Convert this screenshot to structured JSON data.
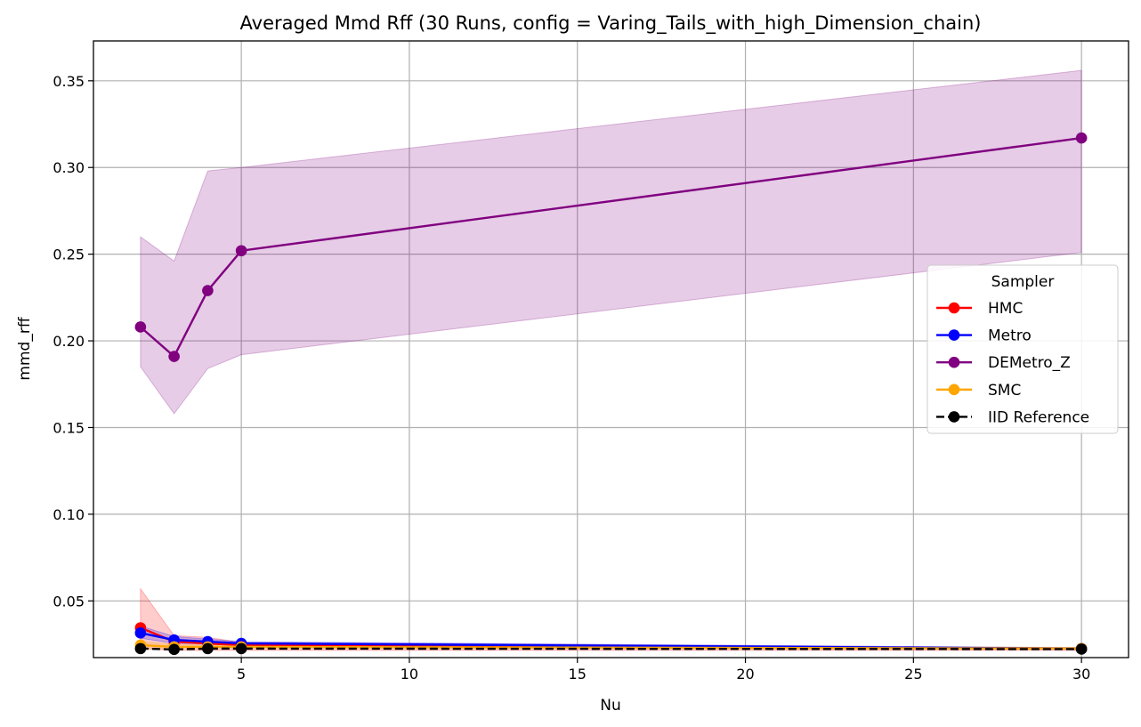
{
  "chart_data": {
    "type": "line",
    "title": "Averaged Mmd Rff (30 Runs, config = Varing_Tails_with_high_Dimension_chain)",
    "xlabel": "Nu",
    "ylabel": "mmd_rff",
    "xlim": [
      0.6,
      31.4
    ],
    "ylim": [
      0.0173,
      0.373
    ],
    "xticks": [
      5,
      10,
      15,
      20,
      25,
      30
    ],
    "xtick_labels": [
      "5",
      "10",
      "15",
      "20",
      "25",
      "30"
    ],
    "yticks": [
      0.05,
      0.1,
      0.15,
      0.2,
      0.25,
      0.3,
      0.35
    ],
    "ytick_labels": [
      "0.05",
      "0.10",
      "0.15",
      "0.20",
      "0.25",
      "0.30",
      "0.35"
    ],
    "grid": true,
    "legend": {
      "title": "Sampler",
      "position": "center-right"
    },
    "x": [
      2,
      3,
      4,
      5,
      30
    ],
    "series": [
      {
        "name": "HMC",
        "color": "#ff0000",
        "style": "solid",
        "marker": "circle",
        "values": [
          0.0345,
          0.0265,
          0.0255,
          0.0245,
          0.0225
        ],
        "band_low": [
          0.0225,
          0.0215,
          0.0215,
          0.0215,
          0.0215
        ],
        "band_high": [
          0.057,
          0.03,
          0.029,
          0.026,
          0.023
        ]
      },
      {
        "name": "Metro",
        "color": "#0000ff",
        "style": "solid",
        "marker": "circle",
        "values": [
          0.0315,
          0.0275,
          0.0265,
          0.0255,
          0.0225
        ],
        "band_low": [
          0.0285,
          0.0255,
          0.025,
          0.0245,
          0.022
        ],
        "band_high": [
          0.0355,
          0.0295,
          0.028,
          0.0265,
          0.023
        ]
      },
      {
        "name": "DEMetro_Z",
        "color": "#800080",
        "style": "solid",
        "marker": "circle",
        "values": [
          0.208,
          0.191,
          0.229,
          0.252,
          0.317
        ],
        "band_low": [
          0.185,
          0.158,
          0.184,
          0.192,
          0.251
        ],
        "band_high": [
          0.26,
          0.246,
          0.298,
          0.3,
          0.356
        ]
      },
      {
        "name": "SMC",
        "color": "#ffa500",
        "style": "solid",
        "marker": "circle",
        "values": [
          0.0245,
          0.0235,
          0.0235,
          0.0235,
          0.0225
        ],
        "band_low": [
          0.0225,
          0.0225,
          0.0225,
          0.0225,
          0.022
        ],
        "band_high": [
          0.0265,
          0.025,
          0.0245,
          0.0245,
          0.0232
        ]
      },
      {
        "name": "IID Reference",
        "color": "#000000",
        "style": "dashed",
        "marker": "circle",
        "values": [
          0.0225,
          0.022,
          0.0225,
          0.0225,
          0.0222
        ]
      }
    ]
  }
}
